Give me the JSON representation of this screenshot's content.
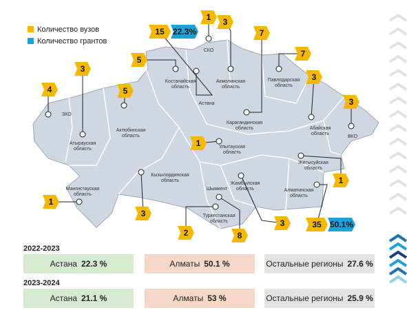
{
  "legend": [
    "Количество вузов",
    "Количество грантов"
  ],
  "regions": [
    {
      "name": "ЗКО",
      "count": 4
    },
    {
      "name": "Атырауская область",
      "count": 3
    },
    {
      "name": "Актюбинская область",
      "count": 5
    },
    {
      "name": "Костанайская область",
      "count": 5
    },
    {
      "name": "СКО",
      "count": 1
    },
    {
      "name": "Акмолинская область",
      "count": 3
    },
    {
      "name": "Астана",
      "count": 15,
      "share": "22.3%"
    },
    {
      "name": "Павлодарская область",
      "count": 7
    },
    {
      "name": "Карагандинская область",
      "count": 7
    },
    {
      "name": "Абайская область",
      "count": 3
    },
    {
      "name": "ВКО",
      "count": 3
    },
    {
      "name": "Улытауская область",
      "count": 1
    },
    {
      "name": "Жетысуйская область",
      "count": 1
    },
    {
      "name": "Алматинская область",
      "count": 35,
      "share": "50.1%"
    },
    {
      "name": "Кызылординская область",
      "count": 3
    },
    {
      "name": "Мангистауская область",
      "count": 1
    },
    {
      "name": "Туркестанская область",
      "count": 2
    },
    {
      "name": "Шымкент",
      "count": 8
    },
    {
      "name": "Жамбылская область",
      "count": 3
    }
  ],
  "years": [
    {
      "year": "2022-2023",
      "cells": [
        {
          "name": "Астана",
          "value": "22.3 %"
        },
        {
          "name": "Алматы",
          "value": "50.1 %"
        },
        {
          "name": "Остальные регионы",
          "value": "27.6 %"
        }
      ]
    },
    {
      "year": "2023-2024",
      "cells": [
        {
          "name": "Астана",
          "value": "21.1 %"
        },
        {
          "name": "Алматы",
          "value": "53 %"
        },
        {
          "name": "Остальные регионы",
          "value": "25.9 %"
        }
      ]
    }
  ]
}
